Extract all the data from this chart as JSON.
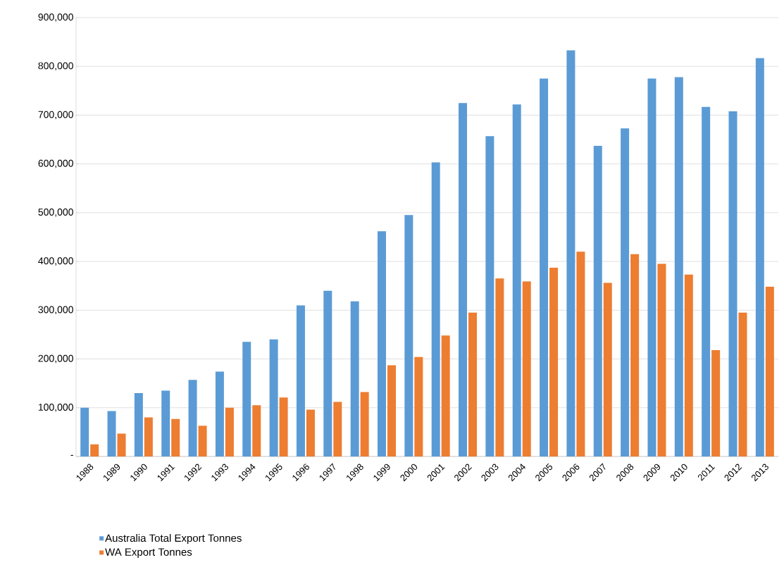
{
  "chart_data": {
    "type": "bar",
    "categories": [
      "1988",
      "1989",
      "1990",
      "1991",
      "1992",
      "1993",
      "1994",
      "1995",
      "1996",
      "1997",
      "1998",
      "1999",
      "2000",
      "2001",
      "2002",
      "2003",
      "2004",
      "2005",
      "2006",
      "2007",
      "2008",
      "2009",
      "2010",
      "2011",
      "2012",
      "2013"
    ],
    "series": [
      {
        "name": "Australia Total Export Tonnes",
        "color": "#5b9bd5",
        "values": [
          100000,
          93000,
          130000,
          135000,
          157000,
          174000,
          235000,
          240000,
          310000,
          340000,
          318000,
          462000,
          495000,
          603000,
          725000,
          657000,
          722000,
          775000,
          833000,
          637000,
          673000,
          775000,
          778000,
          717000,
          708000,
          817000
        ]
      },
      {
        "name": "WA Export Tonnes",
        "color": "#ed7d31",
        "values": [
          25000,
          47000,
          80000,
          77000,
          63000,
          100000,
          105000,
          121000,
          96000,
          112000,
          132000,
          187000,
          204000,
          248000,
          295000,
          365000,
          359000,
          387000,
          420000,
          356000,
          415000,
          395000,
          373000,
          218000,
          295000,
          348000
        ]
      }
    ],
    "ylim": [
      0,
      900000
    ],
    "yticks": [
      {
        "value": 0,
        "label": "-"
      },
      {
        "value": 100000,
        "label": "100,000"
      },
      {
        "value": 200000,
        "label": "200,000"
      },
      {
        "value": 300000,
        "label": "300,000"
      },
      {
        "value": 400000,
        "label": "400,000"
      },
      {
        "value": 500000,
        "label": "500,000"
      },
      {
        "value": 600000,
        "label": "600,000"
      },
      {
        "value": 700000,
        "label": "700,000"
      },
      {
        "value": 800000,
        "label": "800,000"
      },
      {
        "value": 900000,
        "label": "900,000"
      }
    ],
    "grid": "y",
    "legend": "bottom left"
  }
}
